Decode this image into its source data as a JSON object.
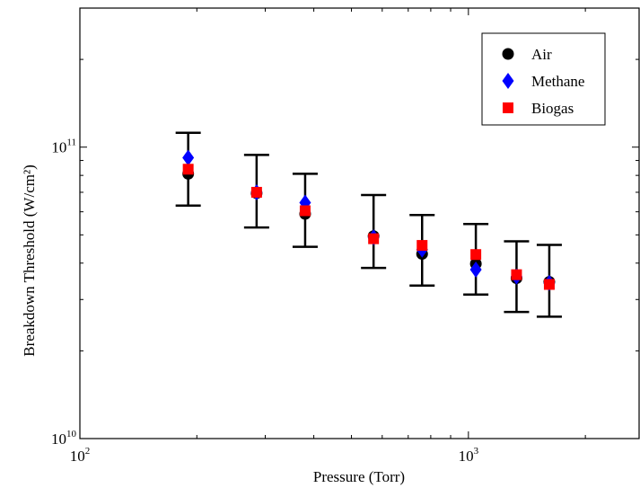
{
  "chart_data": {
    "type": "scatter",
    "title": "",
    "xlabel": "Pressure (Torr)",
    "ylabel": "Breakdown Threshold (W/cm²)",
    "xscale": "log",
    "yscale": "log",
    "xlim": [
      100,
      2750
    ],
    "ylim": [
      10000000000.0,
      300000000000.0
    ],
    "grid": false,
    "legend_position": "top-right",
    "x_ticks": [
      {
        "value": 100,
        "base": "10",
        "exp": "2"
      },
      {
        "value": 1000,
        "base": "10",
        "exp": "3"
      }
    ],
    "y_ticks": [
      {
        "value": 10000000000.0,
        "base": "10",
        "exp": "10"
      },
      {
        "value": 100000000000.0,
        "base": "10",
        "exp": "11"
      }
    ],
    "x": [
      190,
      285,
      380,
      570,
      760,
      1045,
      1330,
      1615
    ],
    "error_bars": {
      "low": [
        63000000000.0,
        53000000000.0,
        45500000000.0,
        38500000000.0,
        33500000000.0,
        31200000000.0,
        27200000000.0,
        26200000000.0
      ],
      "high": [
        112000000000.0,
        94000000000.0,
        81000000000.0,
        68500000000.0,
        58500000000.0,
        54500000000.0,
        47500000000.0,
        46200000000.0
      ]
    },
    "series": [
      {
        "name": "Air",
        "marker": "circle",
        "color": "#000000",
        "values": [
          81000000000.0,
          69500000000.0,
          59000000000.0,
          49500000000.0,
          43000000000.0,
          39800000000.0,
          35500000000.0,
          34500000000.0
        ]
      },
      {
        "name": "Methane",
        "marker": "diamond",
        "color": "#0000ff",
        "values": [
          92000000000.0,
          70000000000.0,
          64500000000.0,
          49000000000.0,
          44500000000.0,
          38000000000.0,
          36000000000.0,
          34200000000.0
        ]
      },
      {
        "name": "Biogas",
        "marker": "square",
        "color": "#ff0000",
        "values": [
          84000000000.0,
          70000000000.0,
          60500000000.0,
          48500000000.0,
          46000000000.0,
          42800000000.0,
          36500000000.0,
          33800000000.0
        ]
      }
    ]
  }
}
